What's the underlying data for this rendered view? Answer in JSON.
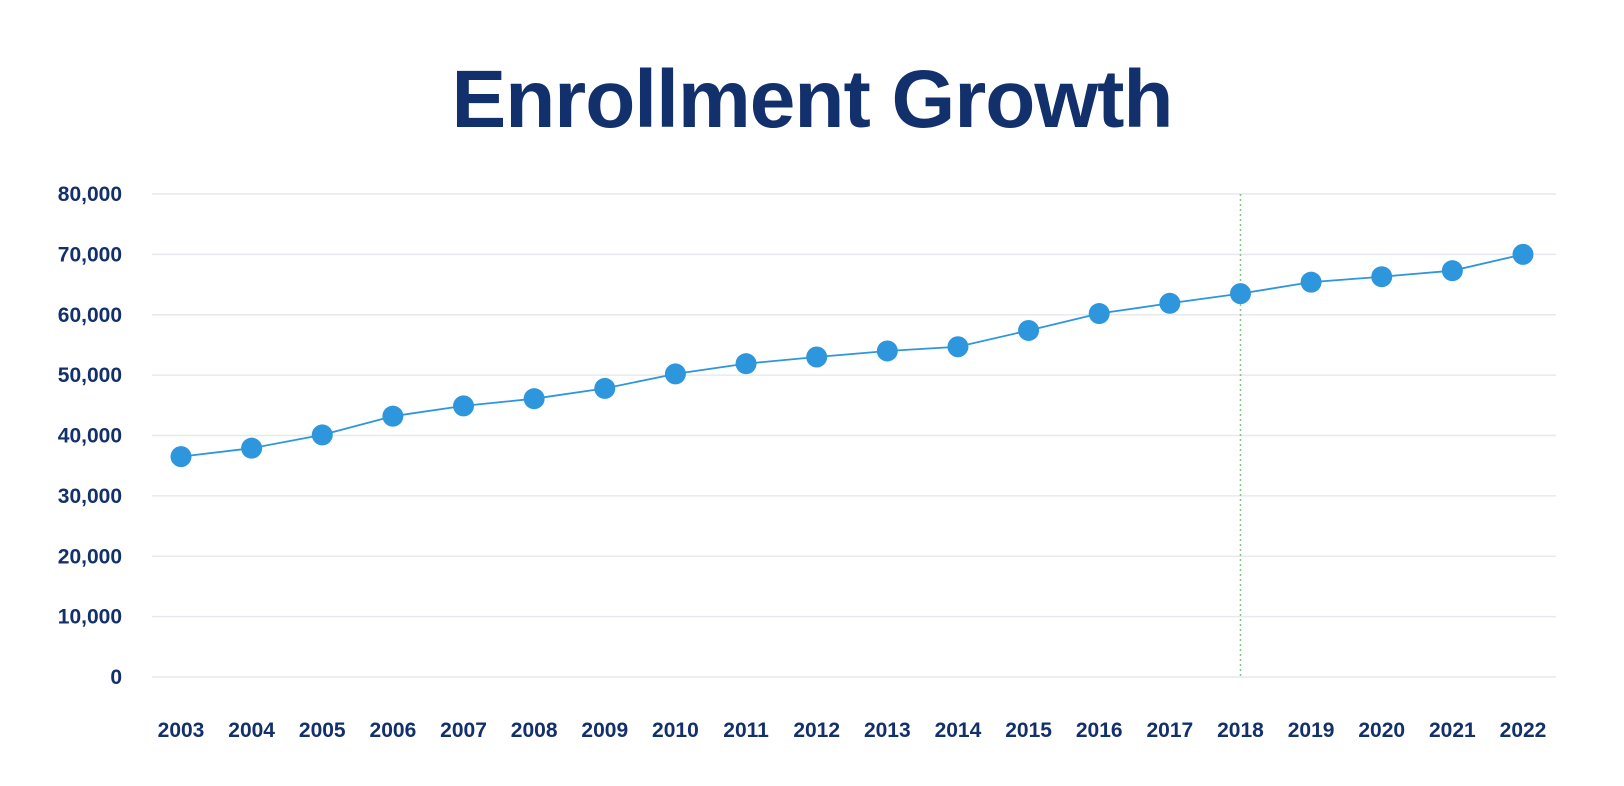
{
  "chart_data": {
    "type": "line",
    "title": "Enrollment Growth",
    "xlabel": "",
    "ylabel": "",
    "categories": [
      "2003",
      "2004",
      "2005",
      "2006",
      "2007",
      "2008",
      "2009",
      "2010",
      "2011",
      "2012",
      "2013",
      "2014",
      "2015",
      "2016",
      "2017",
      "2018",
      "2019",
      "2020",
      "2021",
      "2022"
    ],
    "series": [
      {
        "values": [
          36500,
          37900,
          40100,
          43200,
          44900,
          46100,
          47800,
          50200,
          51900,
          53000,
          54000,
          54700,
          57400,
          60200,
          61900,
          63500,
          65400,
          66300,
          67300,
          70000
        ]
      }
    ],
    "ylim": [
      0,
      80000
    ],
    "yticks": [
      0,
      10000,
      20000,
      30000,
      40000,
      50000,
      60000,
      70000,
      80000
    ],
    "ytick_labels": [
      "0",
      "10,000",
      "20,000",
      "30,000",
      "40,000",
      "50,000",
      "60,000",
      "70,000",
      "80,000"
    ],
    "grid": "horizontal",
    "reference_line_category": "2018",
    "colors": {
      "title": "#12306b",
      "tick_text": "#12306b",
      "series": "#2e96dc",
      "grid": "#e6e9ee",
      "reference_line": "#7fc57f"
    }
  }
}
